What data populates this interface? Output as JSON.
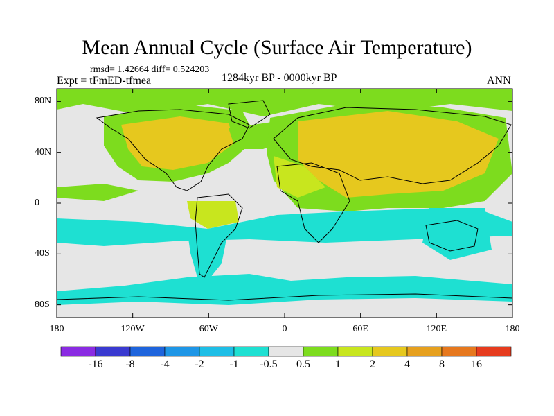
{
  "title": "Mean Annual Cycle (Surface Air Temperature)",
  "stats": "rmsd= 1.42664 diff= 0.524203",
  "experiment": "Expt = tFmED-tfmea",
  "period": "1284kyr BP - 0000kyr BP",
  "season": "ANN",
  "lat_ticks": [
    "80N",
    "40N",
    "0",
    "40S",
    "80S"
  ],
  "lon_ticks": [
    "180",
    "120W",
    "60W",
    "0",
    "60E",
    "120E",
    "180"
  ],
  "colorbar": {
    "labels": [
      "-16",
      "-8",
      "-4",
      "-2",
      "-1",
      "-0.5",
      "0.5",
      "1",
      "2",
      "4",
      "8",
      "16"
    ],
    "colors": [
      "#8a2be2",
      "#3a3ad0",
      "#1e64dc",
      "#1e96e6",
      "#1ebee6",
      "#1ee0d2",
      "#e6e6e6",
      "#7ddc1e",
      "#c8e61e",
      "#e6c81e",
      "#e6a01e",
      "#e6781e",
      "#e63c1e"
    ]
  },
  "palette": {
    "neutral": "#e6e6e6",
    "cool_light": "#1ee0d2",
    "cool": "#1ebee6",
    "cool_deep": "#1e96e6",
    "warm_green": "#7ddc1e",
    "warm_yellow": "#c8e61e",
    "warm_gold": "#e6c81e",
    "warm_orange": "#e6a01e",
    "coast": "#000000"
  }
}
